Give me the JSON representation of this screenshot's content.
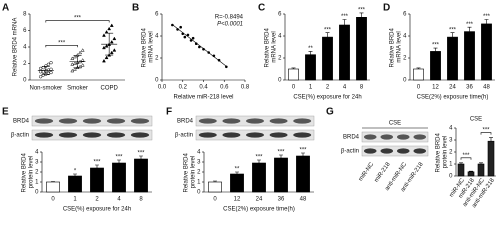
{
  "chart_data": [
    {
      "label": "A",
      "type": "dot",
      "categories": [
        "Non-smoker",
        "Smoker",
        "COPD"
      ],
      "values": [
        [
          0.4,
          0.6,
          0.7,
          0.8,
          0.9,
          1.0,
          1.0,
          1.1,
          1.2,
          1.3,
          1.4,
          1.5,
          1.7,
          1.9,
          2.1
        ],
        [
          1.1,
          1.3,
          1.5,
          1.6,
          1.8,
          1.9,
          2.0,
          2.1,
          2.2,
          2.4,
          2.6,
          2.8,
          3.0,
          3.3,
          3.6
        ],
        [
          2.3,
          2.7,
          3.0,
          3.3,
          3.6,
          3.9,
          4.1,
          4.3,
          4.6,
          5.0,
          5.4,
          5.8,
          6.2,
          6.6
        ]
      ],
      "color": "#000000",
      "ylabel": "Relative BRD4 mRNA",
      "ylim": [
        0,
        8
      ],
      "yticks": [
        0,
        2,
        4,
        6,
        8
      ],
      "brackets": [
        {
          "text": "***",
          "from": 0,
          "to": 2
        },
        {
          "text": "***",
          "from": 0,
          "to": 1
        }
      ]
    },
    {
      "label": "B",
      "type": "scatter",
      "x": [
        0.1,
        0.15,
        0.18,
        0.2,
        0.22,
        0.25,
        0.28,
        0.3,
        0.33,
        0.36,
        0.4,
        0.45,
        0.5,
        0.55,
        0.62
      ],
      "values": [
        5.0,
        4.6,
        4.8,
        4.2,
        3.9,
        4.1,
        3.6,
        3.8,
        3.3,
        3.0,
        2.8,
        2.5,
        2.2,
        1.8,
        1.2
      ],
      "color": "#000000",
      "xlabel": "Relative miR-218 level",
      "ylabel": "Relative BRD4 mRNA level",
      "xlim": [
        0,
        0.8
      ],
      "xticks": [
        {
          "value": 0,
          "label": "0.0"
        },
        0.2,
        0.4,
        0.6,
        0.8
      ],
      "ylim": [
        0,
        6
      ],
      "yticks": [
        0,
        2,
        4,
        6
      ],
      "annotations": [
        "R=-0.8494",
        "P<0.0001"
      ]
    },
    {
      "label": "C",
      "type": "bar",
      "categories": [
        "0",
        "1",
        "2",
        "4",
        "8"
      ],
      "values": [
        1.0,
        2.3,
        3.9,
        5.0,
        5.7
      ],
      "errors": [
        0.1,
        0.3,
        0.4,
        0.5,
        0.4
      ],
      "colors": [
        "#ffffff",
        "#000000",
        "#000000",
        "#000000",
        "#000000"
      ],
      "sig": [
        null,
        "**",
        "***",
        "***",
        "***"
      ],
      "xlabel": "CSE(%) exposure for 24h",
      "ylabel": "Relative BRD4 mRNA level",
      "ylim": [
        0,
        6
      ],
      "yticks": [
        0,
        2,
        4,
        6
      ]
    },
    {
      "label": "D",
      "type": "bar",
      "categories": [
        "0",
        "12",
        "24",
        "36",
        "48"
      ],
      "values": [
        1.0,
        2.6,
        3.9,
        4.4,
        5.1
      ],
      "errors": [
        0.1,
        0.3,
        0.4,
        0.4,
        0.4
      ],
      "colors": [
        "#ffffff",
        "#000000",
        "#000000",
        "#000000",
        "#000000"
      ],
      "sig": [
        null,
        "***",
        "***",
        "***",
        "***"
      ],
      "xlabel": "CSE(2%) exposure time(h)",
      "ylabel": "Relative BRD4 mRNA level",
      "ylim": [
        0,
        6
      ],
      "yticks": [
        0,
        2,
        4,
        6
      ]
    },
    {
      "label": "E",
      "type": "bar",
      "blot_rows": [
        "BRD4",
        "β-actin"
      ],
      "categories": [
        "0",
        "1",
        "2",
        "4",
        "8"
      ],
      "values": [
        1.0,
        1.6,
        2.4,
        2.9,
        3.3
      ],
      "errors": [
        0.05,
        0.2,
        0.3,
        0.3,
        0.3
      ],
      "colors": [
        "#ffffff",
        "#000000",
        "#000000",
        "#000000",
        "#000000"
      ],
      "sig": [
        null,
        "*",
        "***",
        "***",
        "***"
      ],
      "xlabel": "CSE(%) exposure for 24h",
      "ylabel": "Relative BRD4 protein level",
      "ylim": [
        0,
        4
      ],
      "yticks": [
        0,
        1,
        2,
        3,
        4
      ]
    },
    {
      "label": "F",
      "type": "bar",
      "blot_rows": [
        "BRD4",
        "β-actin"
      ],
      "categories": [
        "0",
        "12",
        "24",
        "36",
        "48"
      ],
      "values": [
        1.0,
        1.8,
        2.9,
        3.4,
        3.6
      ],
      "errors": [
        0.1,
        0.2,
        0.3,
        0.3,
        0.3
      ],
      "colors": [
        "#ffffff",
        "#000000",
        "#000000",
        "#000000",
        "#000000"
      ],
      "sig": [
        null,
        "**",
        "***",
        "***",
        "***"
      ],
      "xlabel": "CSE(2%) exposure time(h)",
      "ylabel": "Relative BRD4 protein level",
      "ylim": [
        0,
        4
      ],
      "yticks": [
        0,
        1,
        2,
        3,
        4
      ]
    },
    {
      "label": "G",
      "type": "bar",
      "blot_title": "CSE",
      "blot_rows": [
        "BRD4",
        "β-actin"
      ],
      "blot_lanes": [
        "miR-NC",
        "miR-218",
        "anti-miR-NC",
        "anti-miR-218"
      ],
      "title": "CSE",
      "categories": [
        "miR-NC",
        "miR-218",
        "anti-miR-NC",
        "anti-miR-218"
      ],
      "values": [
        1.0,
        0.35,
        1.0,
        2.9
      ],
      "errors": [
        0.1,
        0.05,
        0.1,
        0.3
      ],
      "colors": [
        "#222222",
        "#222222",
        "#222222",
        "#222222"
      ],
      "ylabel": "Relative BRD4 protein level",
      "ylim": [
        0,
        4
      ],
      "yticks": [
        0,
        1,
        2,
        3,
        4
      ],
      "brackets": [
        {
          "text": "***",
          "from": 0,
          "to": 1
        },
        {
          "text": "***",
          "from": 2,
          "to": 3
        }
      ]
    }
  ]
}
